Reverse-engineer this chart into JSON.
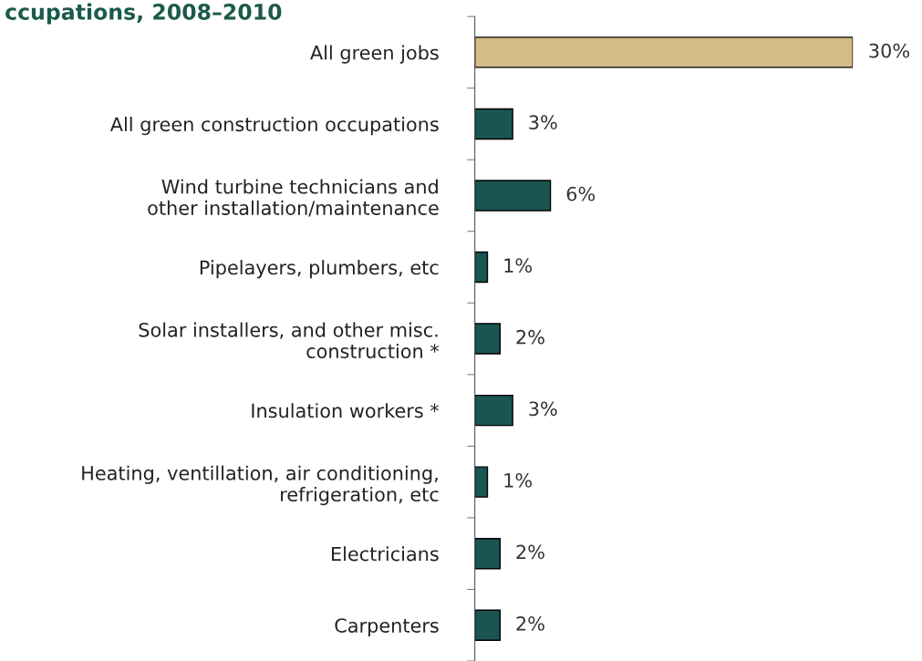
{
  "chart_data": {
    "type": "bar",
    "orientation": "horizontal",
    "title": "ccupations, 2008–2010",
    "categories": [
      "All green jobs",
      "All green construction occupations",
      "Wind turbine technicians and\nother installation/maintenance",
      "Pipelayers, plumbers, etc",
      "Solar installers, and other misc.\nconstruction *",
      "Insulation workers *",
      "Heating, ventillation, air conditioning,\nrefrigeration, etc",
      "Electricians",
      "Carpenters"
    ],
    "values": [
      30,
      3,
      6,
      1,
      2,
      3,
      1,
      2,
      2
    ],
    "colors": [
      "#d3bd86",
      "#1a5553",
      "#1a5553",
      "#1a5553",
      "#1a5553",
      "#1a5553",
      "#1a5553",
      "#1a5553",
      "#1a5553"
    ],
    "value_labels": [
      "30%",
      "3%",
      "6%",
      "1%",
      "2%",
      "3%",
      "1%",
      "2%",
      "2%"
    ],
    "grid": false,
    "legend": false
  }
}
